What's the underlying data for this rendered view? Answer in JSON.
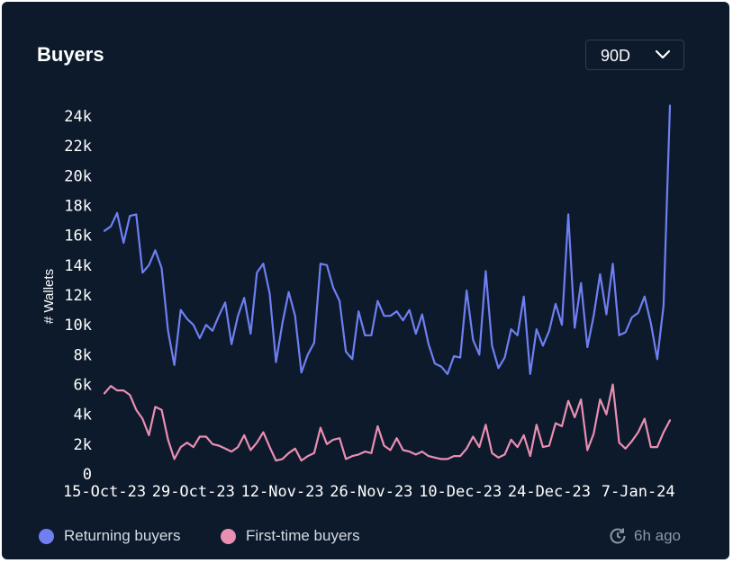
{
  "card": {
    "title": "Buyers",
    "range_select": {
      "selected": "90D"
    },
    "updated_label": "6h ago"
  },
  "colors": {
    "background": "#0c1a2b",
    "returning": "#6f7ff2",
    "first_time": "#ea8fb2"
  },
  "chart_data": {
    "type": "line",
    "ylabel": "# Wallets",
    "ylim": [
      0,
      24000
    ],
    "ytick_values": [
      0,
      2000,
      4000,
      6000,
      8000,
      10000,
      12000,
      14000,
      16000,
      18000,
      20000,
      22000,
      24000
    ],
    "ytick_labels": [
      "0",
      "2k",
      "4k",
      "6k",
      "8k",
      "10k",
      "12k",
      "14k",
      "16k",
      "18k",
      "20k",
      "22k",
      "24k"
    ],
    "x": [
      "15-Oct-23",
      "16-Oct-23",
      "17-Oct-23",
      "18-Oct-23",
      "19-Oct-23",
      "20-Oct-23",
      "21-Oct-23",
      "22-Oct-23",
      "23-Oct-23",
      "24-Oct-23",
      "25-Oct-23",
      "26-Oct-23",
      "27-Oct-23",
      "28-Oct-23",
      "29-Oct-23",
      "30-Oct-23",
      "31-Oct-23",
      "1-Nov-23",
      "2-Nov-23",
      "3-Nov-23",
      "4-Nov-23",
      "5-Nov-23",
      "6-Nov-23",
      "7-Nov-23",
      "8-Nov-23",
      "9-Nov-23",
      "10-Nov-23",
      "11-Nov-23",
      "12-Nov-23",
      "13-Nov-23",
      "14-Nov-23",
      "15-Nov-23",
      "16-Nov-23",
      "17-Nov-23",
      "18-Nov-23",
      "19-Nov-23",
      "20-Nov-23",
      "21-Nov-23",
      "22-Nov-23",
      "23-Nov-23",
      "24-Nov-23",
      "25-Nov-23",
      "26-Nov-23",
      "27-Nov-23",
      "28-Nov-23",
      "29-Nov-23",
      "30-Nov-23",
      "1-Dec-23",
      "2-Dec-23",
      "3-Dec-23",
      "4-Dec-23",
      "5-Dec-23",
      "6-Dec-23",
      "7-Dec-23",
      "8-Dec-23",
      "9-Dec-23",
      "10-Dec-23",
      "11-Dec-23",
      "12-Dec-23",
      "13-Dec-23",
      "14-Dec-23",
      "15-Dec-23",
      "16-Dec-23",
      "17-Dec-23",
      "18-Dec-23",
      "19-Dec-23",
      "20-Dec-23",
      "21-Dec-23",
      "22-Dec-23",
      "23-Dec-23",
      "24-Dec-23",
      "25-Dec-23",
      "26-Dec-23",
      "27-Dec-23",
      "28-Dec-23",
      "29-Dec-23",
      "30-Dec-23",
      "31-Dec-23",
      "1-Jan-24",
      "2-Jan-24",
      "3-Jan-24",
      "4-Jan-24",
      "5-Jan-24",
      "6-Jan-24",
      "7-Jan-24",
      "8-Jan-24",
      "9-Jan-24",
      "10-Jan-24",
      "11-Jan-24",
      "12-Jan-24"
    ],
    "xtick_labels": [
      "15-Oct-23",
      "29-Oct-23",
      "12-Nov-23",
      "26-Nov-23",
      "10-Dec-23",
      "24-Dec-23",
      "7-Jan-24"
    ],
    "grid": false,
    "legend_position": "bottom-left",
    "series": [
      {
        "name": "Returning buyers",
        "color": "#6f7ff2",
        "values": [
          16300,
          16600,
          17500,
          15500,
          17300,
          17400,
          13500,
          14000,
          15000,
          13800,
          9600,
          7300,
          11000,
          10400,
          10000,
          9100,
          10000,
          9600,
          10600,
          11500,
          8700,
          10600,
          11800,
          9400,
          13500,
          14100,
          12100,
          7500,
          10100,
          12200,
          10600,
          6800,
          8000,
          8800,
          14100,
          14000,
          12500,
          11600,
          8200,
          7700,
          10900,
          9300,
          9300,
          11600,
          10600,
          10600,
          10900,
          10300,
          11000,
          9400,
          10700,
          8700,
          7400,
          7200,
          6700,
          7900,
          7800,
          12300,
          9000,
          8000,
          13600,
          8600,
          7100,
          7800,
          9700,
          9300,
          11900,
          6700,
          9700,
          8600,
          9600,
          11400,
          10000,
          17400,
          9800,
          12800,
          8500,
          10600,
          13400,
          10700,
          14100,
          9300,
          9500,
          10500,
          10800,
          11900,
          10100,
          7700,
          11300,
          24700
        ]
      },
      {
        "name": "First-time buyers",
        "color": "#ea8fb2",
        "values": [
          5400,
          5900,
          5600,
          5600,
          5300,
          4300,
          3700,
          2600,
          4500,
          4300,
          2300,
          1000,
          1800,
          2100,
          1800,
          2500,
          2500,
          2000,
          1900,
          1700,
          1500,
          1800,
          2600,
          1600,
          2100,
          2800,
          1800,
          900,
          1000,
          1400,
          1700,
          900,
          1200,
          1400,
          3100,
          2000,
          2300,
          2400,
          1000,
          1200,
          1300,
          1500,
          1400,
          3200,
          1900,
          1600,
          2400,
          1600,
          1500,
          1300,
          1500,
          1200,
          1100,
          1000,
          1000,
          1200,
          1200,
          1700,
          2500,
          1800,
          3300,
          1400,
          1100,
          1300,
          2300,
          1800,
          2600,
          1200,
          3300,
          1800,
          1900,
          3400,
          3200,
          4900,
          3800,
          5000,
          1600,
          2700,
          5000,
          4000,
          6000,
          2100,
          1700,
          2200,
          2800,
          3700,
          1800,
          1800,
          2800,
          3600
        ]
      }
    ]
  }
}
